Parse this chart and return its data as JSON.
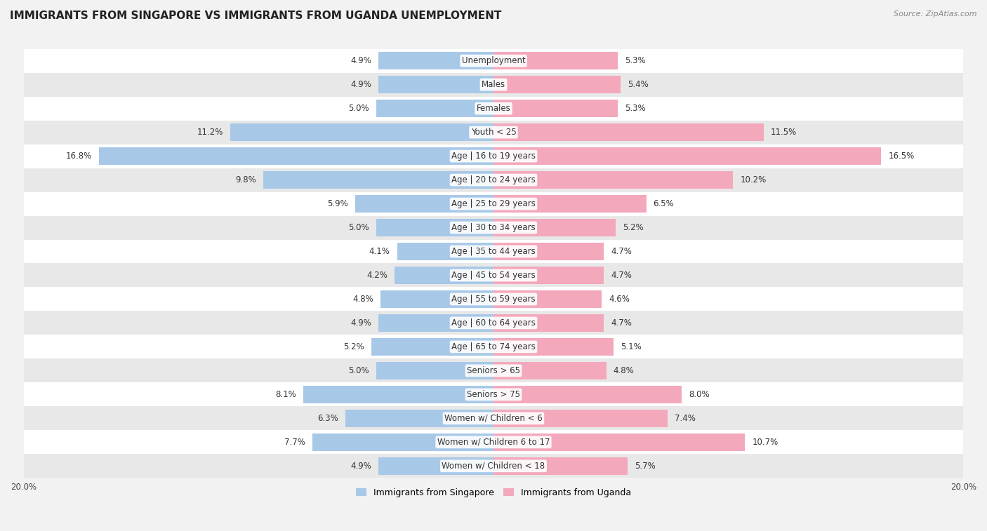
{
  "title": "IMMIGRANTS FROM SINGAPORE VS IMMIGRANTS FROM UGANDA UNEMPLOYMENT",
  "source": "Source: ZipAtlas.com",
  "categories": [
    "Unemployment",
    "Males",
    "Females",
    "Youth < 25",
    "Age | 16 to 19 years",
    "Age | 20 to 24 years",
    "Age | 25 to 29 years",
    "Age | 30 to 34 years",
    "Age | 35 to 44 years",
    "Age | 45 to 54 years",
    "Age | 55 to 59 years",
    "Age | 60 to 64 years",
    "Age | 65 to 74 years",
    "Seniors > 65",
    "Seniors > 75",
    "Women w/ Children < 6",
    "Women w/ Children 6 to 17",
    "Women w/ Children < 18"
  ],
  "singapore_values": [
    4.9,
    4.9,
    5.0,
    11.2,
    16.8,
    9.8,
    5.9,
    5.0,
    4.1,
    4.2,
    4.8,
    4.9,
    5.2,
    5.0,
    8.1,
    6.3,
    7.7,
    4.9
  ],
  "uganda_values": [
    5.3,
    5.4,
    5.3,
    11.5,
    16.5,
    10.2,
    6.5,
    5.2,
    4.7,
    4.7,
    4.6,
    4.7,
    5.1,
    4.8,
    8.0,
    7.4,
    10.7,
    5.7
  ],
  "singapore_color": "#a8c8e8",
  "uganda_color": "#f4a8bc",
  "xlim": 20.0,
  "background_color": "#f2f2f2",
  "row_color_even": "#ffffff",
  "row_color_odd": "#e8e8e8",
  "legend_singapore": "Immigrants from Singapore",
  "legend_uganda": "Immigrants from Uganda",
  "title_fontsize": 11,
  "label_fontsize": 8.5,
  "value_fontsize": 8.5,
  "tick_label_fontsize": 8.5
}
